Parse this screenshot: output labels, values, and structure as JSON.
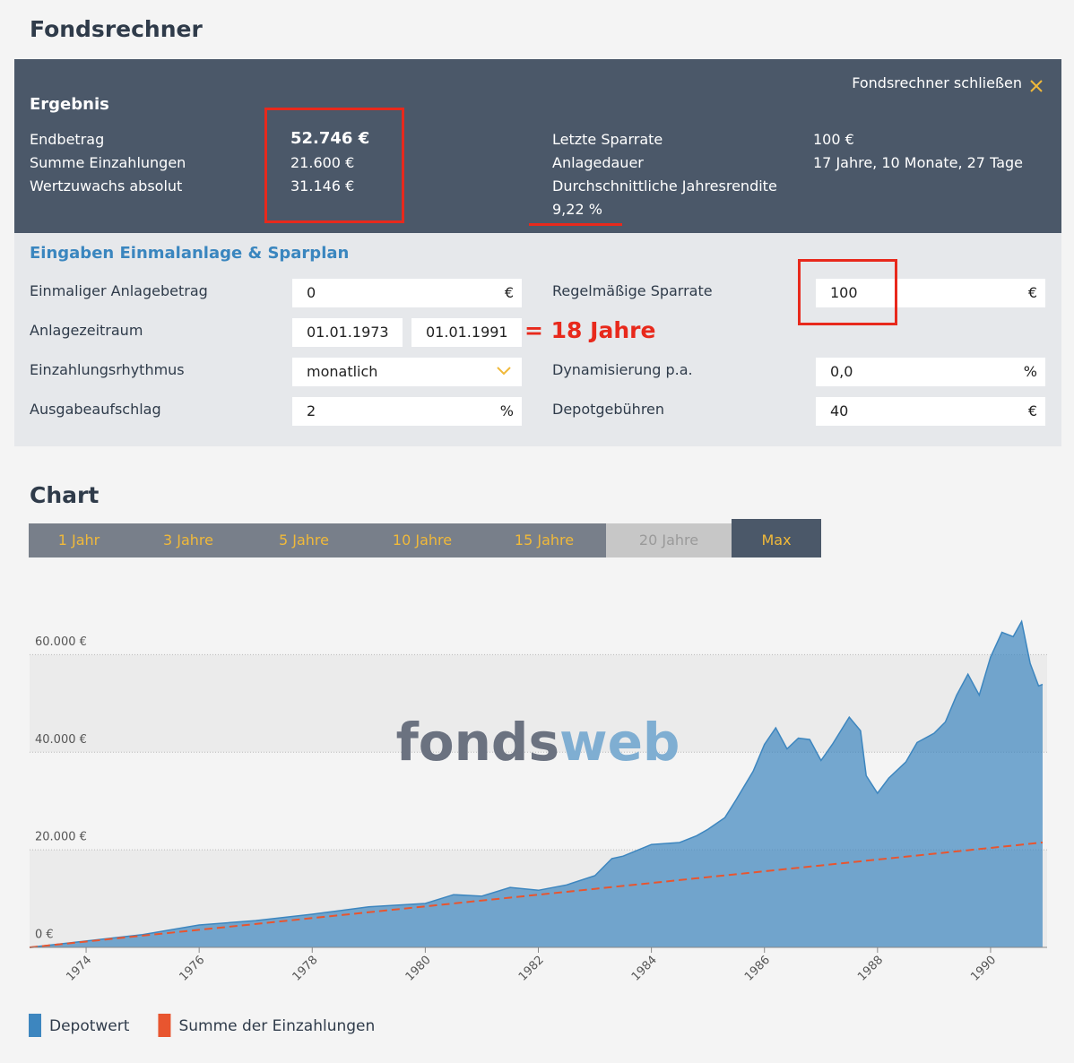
{
  "header": {
    "title": "Fondsrechner"
  },
  "result": {
    "title": "Ergebnis",
    "close": "Fondsrechner schließen",
    "left": [
      {
        "label": "Endbetrag",
        "value": "52.746 €"
      },
      {
        "label": "Summe Einzahlungen",
        "value": "21.600 €"
      },
      {
        "label": "Wertzuwachs absolut",
        "value": "31.146 €"
      }
    ],
    "right": [
      {
        "label": "Letzte Sparrate",
        "value": "100 €"
      },
      {
        "label": "Anlagedauer",
        "value": "17 Jahre, 10 Monate, 27 Tage"
      },
      {
        "label": "Durchschnittliche Jahresrendite",
        "value": "9,22 %"
      }
    ]
  },
  "inputs": {
    "title": "Eingaben Einmalanlage & Sparplan",
    "fields": [
      {
        "label": "Einmaliger Anlagebetrag",
        "value": "0",
        "unit": "€"
      },
      {
        "label": "Anlagezeitraum",
        "from": "01.01.1973",
        "to": "01.01.1991"
      },
      {
        "label": "Einzahlungsrhythmus",
        "value": "monatlich"
      },
      {
        "label": "Ausgabeaufschlag",
        "value": "2",
        "unit": "%"
      },
      {
        "label": "Regelmäßige Sparrate",
        "value": "100",
        "unit": "€"
      },
      {
        "label": "Dynamisierung p.a.",
        "value": "0,0",
        "unit": "%"
      },
      {
        "label": "Depotgebühren",
        "value": "40",
        "unit": "€"
      }
    ]
  },
  "annotation": "= 18 Jahre",
  "chart_section": {
    "title": "Chart",
    "tabs": [
      "1 Jahr",
      "3 Jahre",
      "5 Jahre",
      "10 Jahre",
      "15 Jahre",
      "20 Jahre",
      "Max"
    ]
  },
  "watermark": {
    "part1": "fonds",
    "part2": "web"
  },
  "chart_data": {
    "type": "area",
    "x": [
      1973,
      1974,
      1975,
      1976,
      1977,
      1978,
      1979,
      1980,
      1980.5,
      1981,
      1981.5,
      1982,
      1982.5,
      1983,
      1983.3,
      1983.5,
      1984,
      1984.5,
      1984.8,
      1985,
      1985.3,
      1985.5,
      1985.8,
      1986,
      1986.2,
      1986.4,
      1986.6,
      1986.8,
      1987,
      1987.2,
      1987.5,
      1987.7,
      1987.8,
      1988,
      1988.2,
      1988.5,
      1988.7,
      1989,
      1989.2,
      1989.4,
      1989.6,
      1989.8,
      1990,
      1990.2,
      1990.4,
      1990.55,
      1990.7,
      1990.85,
      1990.92
    ],
    "series": [
      {
        "name": "Depotwert",
        "color": "#3d86bf",
        "values": [
          0,
          1300,
          2600,
          4600,
          5500,
          6800,
          8300,
          9000,
          10800,
          10500,
          12300,
          11700,
          12800,
          14700,
          18200,
          18700,
          21100,
          21500,
          22900,
          24200,
          26600,
          30300,
          36100,
          41600,
          45000,
          40700,
          42900,
          42600,
          38300,
          41600,
          47200,
          44400,
          35200,
          31600,
          34700,
          38000,
          42000,
          43900,
          46200,
          51700,
          56000,
          51700,
          59500,
          64600,
          63700,
          66800,
          58200,
          53600,
          53900
        ]
      },
      {
        "name": "Summe der Einzahlungen",
        "color": "#e8552f",
        "values": [
          0,
          1200,
          2400,
          3600,
          4800,
          6000,
          7200,
          8400,
          9000,
          9600,
          10200,
          10800,
          11400,
          12000,
          12360,
          12600,
          13200,
          13800,
          14160,
          14400,
          14760,
          15000,
          15360,
          15600,
          15840,
          16080,
          16320,
          16560,
          16800,
          17040,
          17400,
          17640,
          17760,
          18000,
          18240,
          18600,
          18840,
          19200,
          19440,
          19680,
          19920,
          20160,
          20400,
          20640,
          20880,
          21060,
          21240,
          21420,
          21504
        ]
      }
    ],
    "xlim": [
      1973,
      1991
    ],
    "xticks": [
      1974,
      1976,
      1978,
      1980,
      1982,
      1984,
      1986,
      1988,
      1990
    ],
    "ylim": [
      0,
      70000
    ],
    "yticks": [
      {
        "value": 0,
        "label": "0 €"
      },
      {
        "value": 20000,
        "label": "20.000 €"
      },
      {
        "value": 40000,
        "label": "40.000 €"
      },
      {
        "value": 60000,
        "label": "60.000 €"
      }
    ],
    "grid": true
  }
}
